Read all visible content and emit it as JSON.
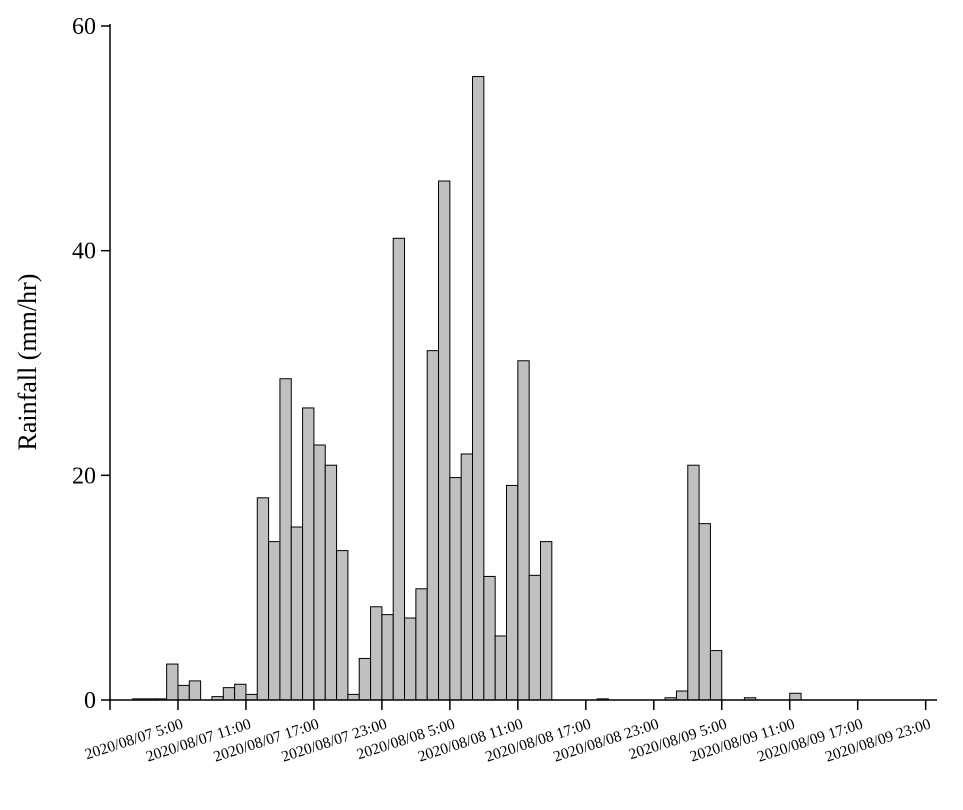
{
  "chart_data": {
    "type": "bar",
    "title": "",
    "xlabel": "",
    "ylabel": "Rainfall (mm/hr)",
    "ylim": [
      0,
      60
    ],
    "yticks": [
      0,
      20,
      40,
      60
    ],
    "ytick_labels": [
      "0",
      "20",
      "40",
      "60"
    ],
    "x_start": "2020/08/07 0:00",
    "x_interval": "1 hour",
    "xlim": [
      "2020/08/06 23:00",
      "2020/08/10 0:00"
    ],
    "xticks": [
      "2020/08/06 23:00",
      "2020/08/07 5:00",
      "2020/08/07 11:00",
      "2020/08/07 17:00",
      "2020/08/07 23:00",
      "2020/08/08 5:00",
      "2020/08/08 11:00",
      "2020/08/08 17:00",
      "2020/08/08 23:00",
      "2020/08/09 5:00",
      "2020/08/09 11:00",
      "2020/08/09 17:00",
      "2020/08/09 23:00"
    ],
    "xtick_labels": [
      "",
      "2020/08/07 5:00",
      "2020/08/07 11:00",
      "2020/08/07 17:00",
      "2020/08/07 23:00",
      "2020/08/08 5:00",
      "2020/08/08 11:00",
      "2020/08/08 17:00",
      "2020/08/08 23:00",
      "2020/08/09 5:00",
      "2020/08/09 11:00",
      "2020/08/09 17:00",
      "2020/08/09 23:00"
    ],
    "values": [
      0,
      0.1,
      0.1,
      0.1,
      3.2,
      1.3,
      1.7,
      0,
      0.3,
      1.1,
      1.4,
      0.5,
      18,
      14.1,
      28.6,
      15.4,
      26,
      22.7,
      20.9,
      13.3,
      0.5,
      3.7,
      8.3,
      7.6,
      41.1,
      7.3,
      9.9,
      31.1,
      46.2,
      19.8,
      21.9,
      55.5,
      11,
      5.7,
      19.1,
      30.2,
      11.1,
      14.1,
      0,
      0,
      0,
      0,
      0.1,
      0,
      0,
      0,
      0,
      0,
      0.2,
      0.8,
      20.9,
      15.7,
      4.4,
      0,
      0,
      0.2,
      0,
      0,
      0,
      0.6,
      0,
      0,
      0,
      0,
      0,
      0,
      0,
      0,
      0,
      0,
      0,
      0
    ],
    "bar_color": "#c0c0c0",
    "edge_color": "#000000",
    "grid": false,
    "legend": "none"
  }
}
